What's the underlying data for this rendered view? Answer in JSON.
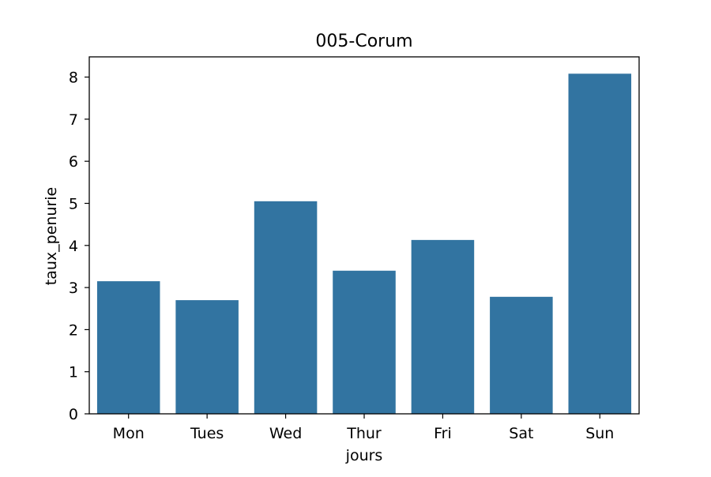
{
  "chart_data": {
    "type": "bar",
    "title": "005-Corum",
    "xlabel": "jours",
    "ylabel": "taux_penurie",
    "categories": [
      "Mon",
      "Tues",
      "Wed",
      "Thur",
      "Fri",
      "Sat",
      "Sun"
    ],
    "values": [
      3.15,
      2.7,
      5.05,
      3.4,
      4.13,
      2.78,
      8.08
    ],
    "ylim": [
      0,
      8.48
    ],
    "yticks": [
      0,
      1,
      2,
      3,
      4,
      5,
      6,
      7,
      8
    ],
    "grid": false,
    "bar_color": "#3274a1"
  }
}
